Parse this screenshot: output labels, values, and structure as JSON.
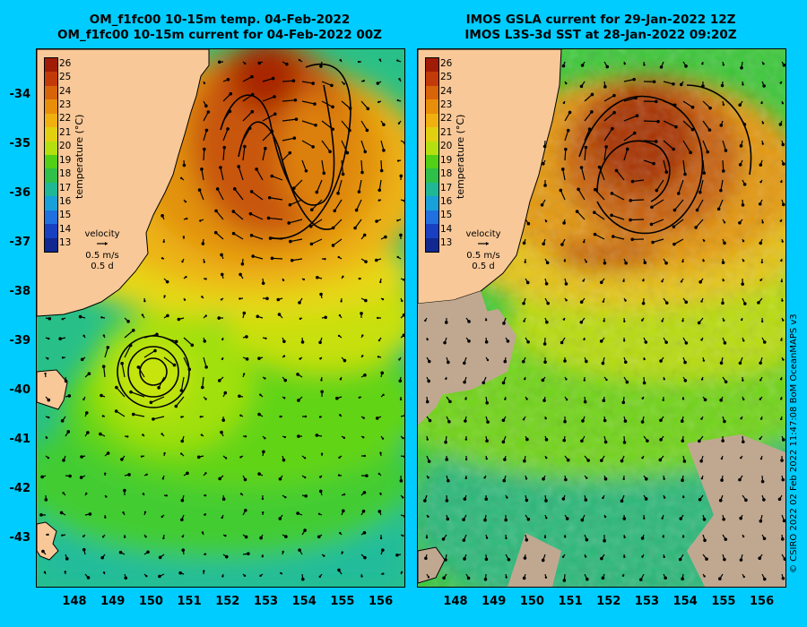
{
  "left_panel": {
    "title_line1": "OM_f1fc00 10-15m temp. 04-Feb-2022",
    "title_line2": "OM_f1fc00 10-15m current for 04-Feb-2022 00Z"
  },
  "right_panel": {
    "title_line1": "IMOS GSLA current for 29-Jan-2022 12Z",
    "title_line2": "IMOS L3S-3d SST at 28-Jan-2022 09:20Z"
  },
  "colorbar": {
    "label": "temperature (°C)",
    "ticks": [
      "26",
      "25",
      "24",
      "23",
      "22",
      "21",
      "20",
      "19",
      "18",
      "17",
      "16",
      "15",
      "14",
      "13"
    ],
    "colors": [
      "#a01c06",
      "#c23a08",
      "#d8640a",
      "#e88e0a",
      "#f0b010",
      "#e2d010",
      "#b4e010",
      "#52d016",
      "#2ec048",
      "#1eb896",
      "#18a0d8",
      "#2070e0",
      "#1840c0",
      "#102890"
    ]
  },
  "velocity_key": {
    "title": "velocity",
    "speed": "0.5 m/s",
    "duration": "0.5 d"
  },
  "latitude_labels": [
    "-34",
    "-35",
    "-36",
    "-37",
    "-38",
    "-39",
    "-40",
    "-41",
    "-42",
    "-43"
  ],
  "longitude_labels": [
    "148",
    "149",
    "150",
    "151",
    "152",
    "153",
    "154",
    "155",
    "156"
  ],
  "credit": "© CSIRO 2022   02 Feb 2022 11:47:08 BoM OceanMAPS v3",
  "colors": {
    "background": "#00ccff",
    "land": "#f8c898",
    "missing_data": "#c0a890",
    "vector": "#000000"
  }
}
